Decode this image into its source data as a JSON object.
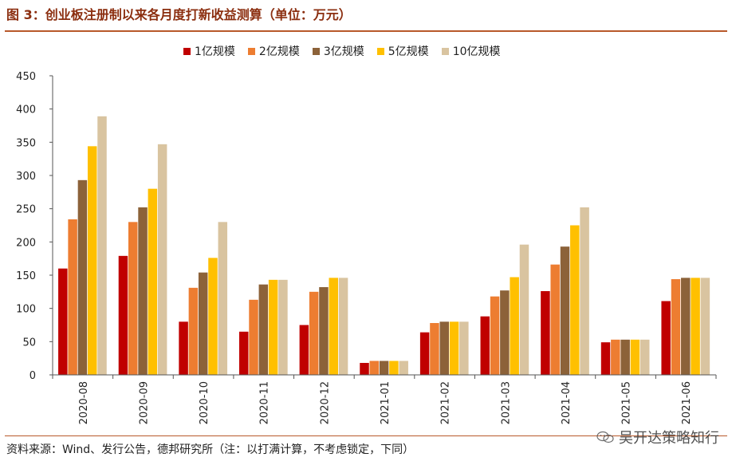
{
  "figure": {
    "title": "图 3：创业板注册制以来各月度打新收益测算（单位：万元）",
    "source": "资料来源：Wind、发行公告，德邦研究所（注：以打满计算，不考虑锁定，下同）",
    "watermark": "吴开达策略知行"
  },
  "colors": {
    "title": "#8B2E0F",
    "rule": "#B8592B",
    "series": [
      "#C00000",
      "#ED7D31",
      "#8C6239",
      "#FFC000",
      "#D9C4A0"
    ]
  },
  "chart_data": {
    "type": "bar",
    "categories": [
      "2020-08",
      "2020-09",
      "2020-10",
      "2020-11",
      "2020-12",
      "2021-01",
      "2021-02",
      "2021-03",
      "2021-04",
      "2021-05",
      "2021-06"
    ],
    "series": [
      {
        "name": "1亿规模",
        "values": [
          160,
          179,
          80,
          65,
          75,
          18,
          64,
          88,
          126,
          49,
          111
        ]
      },
      {
        "name": "2亿规模",
        "values": [
          234,
          230,
          131,
          113,
          125,
          21,
          78,
          118,
          166,
          53,
          144
        ]
      },
      {
        "name": "3亿规模",
        "values": [
          293,
          252,
          154,
          136,
          132,
          21,
          80,
          127,
          193,
          53,
          146
        ]
      },
      {
        "name": "5亿规模",
        "values": [
          344,
          280,
          176,
          143,
          146,
          21,
          80,
          147,
          225,
          53,
          146
        ]
      },
      {
        "name": "10亿规模",
        "values": [
          389,
          347,
          230,
          143,
          146,
          21,
          80,
          196,
          252,
          53,
          146
        ]
      }
    ],
    "y_ticks": [
      0,
      50,
      100,
      150,
      200,
      250,
      300,
      350,
      400,
      450
    ],
    "ylim": [
      0,
      450
    ],
    "legend_position": "top",
    "grid": false
  }
}
